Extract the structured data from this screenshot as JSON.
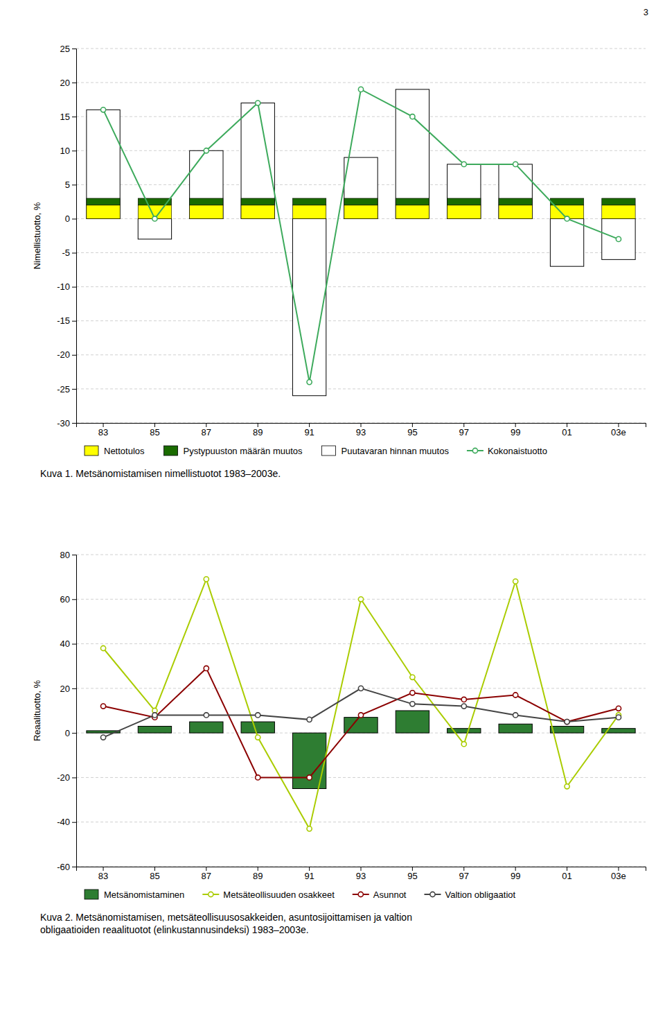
{
  "chart_data": [
    {
      "type": "bar",
      "title": "Kuva 1. Metsänomistamisen nimellistuotot 1983–2003e.",
      "annotations": [
        "3"
      ],
      "ylabel": "Nimellistuotto, %",
      "categories": [
        "83",
        "85",
        "87",
        "89",
        "91",
        "93",
        "95",
        "97",
        "99",
        "01",
        "03e"
      ],
      "ylim": [
        -30,
        25
      ],
      "yticks": [
        -30,
        -25,
        -20,
        -15,
        -10,
        -5,
        0,
        5,
        10,
        15,
        20,
        25
      ],
      "grid": true,
      "legend": "bottom",
      "series": [
        {
          "name": "Nettotulos",
          "type": "bar",
          "stacked": true,
          "color": "#FFFF00",
          "values": [
            2,
            2,
            2,
            2,
            2,
            2,
            2,
            2,
            2,
            2,
            2
          ]
        },
        {
          "name": "Pystypuuston määrän muutos",
          "type": "bar",
          "stacked": true,
          "color": "#1A6B00",
          "values": [
            1,
            1,
            1,
            1,
            1,
            1,
            1,
            1,
            1,
            1,
            1
          ]
        },
        {
          "name": "Puutavaran hinnan muutos",
          "type": "bar",
          "stacked": false,
          "color": "#FFFFFF",
          "values": [
            16,
            -3,
            10,
            17,
            -26,
            9,
            19,
            8,
            8,
            -7,
            -6
          ]
        },
        {
          "name": "Kokonaistuotto",
          "type": "line",
          "marker": "circle",
          "color": "#3DAA5C",
          "values": [
            16,
            0,
            10,
            17,
            -24,
            19,
            15,
            8,
            8,
            0,
            -3
          ]
        }
      ]
    },
    {
      "type": "bar",
      "title": "Kuva 2. Metsänomistamisen, metsäteollisuusosakkeiden, asuntosijoittamisen ja valtion\nobligaatioiden reaalituotot (elinkustannusindeksi) 1983–2003e.",
      "ylabel": "Reaalituotto, %",
      "categories": [
        "83",
        "85",
        "87",
        "89",
        "91",
        "93",
        "95",
        "97",
        "99",
        "01",
        "03e"
      ],
      "ylim": [
        -60,
        80
      ],
      "yticks": [
        -60,
        -40,
        -20,
        0,
        20,
        40,
        60,
        80
      ],
      "grid": true,
      "legend": "bottom",
      "series": [
        {
          "name": "Metsänomistaminen",
          "type": "bar",
          "stacked": false,
          "color": "#2E7D32",
          "values": [
            1,
            3,
            5,
            5,
            -25,
            7,
            10,
            2,
            4,
            3,
            2
          ]
        },
        {
          "name": "Metsäteollisuuden osakkeet",
          "type": "line",
          "marker": "circle",
          "color": "#AACC00",
          "values": [
            38,
            10,
            69,
            -2,
            -43,
            60,
            25,
            -5,
            68,
            -24,
            8
          ]
        },
        {
          "name": "Asunnot",
          "type": "line",
          "marker": "circle",
          "color": "#8B0000",
          "values": [
            12,
            7,
            29,
            -20,
            -20,
            8,
            18,
            15,
            17,
            5,
            11
          ]
        },
        {
          "name": "Valtion obligaatiot",
          "type": "line",
          "marker": "circle",
          "color": "#444444",
          "values": [
            -2,
            8,
            8,
            8,
            6,
            20,
            13,
            12,
            8,
            5,
            7
          ]
        }
      ]
    }
  ]
}
